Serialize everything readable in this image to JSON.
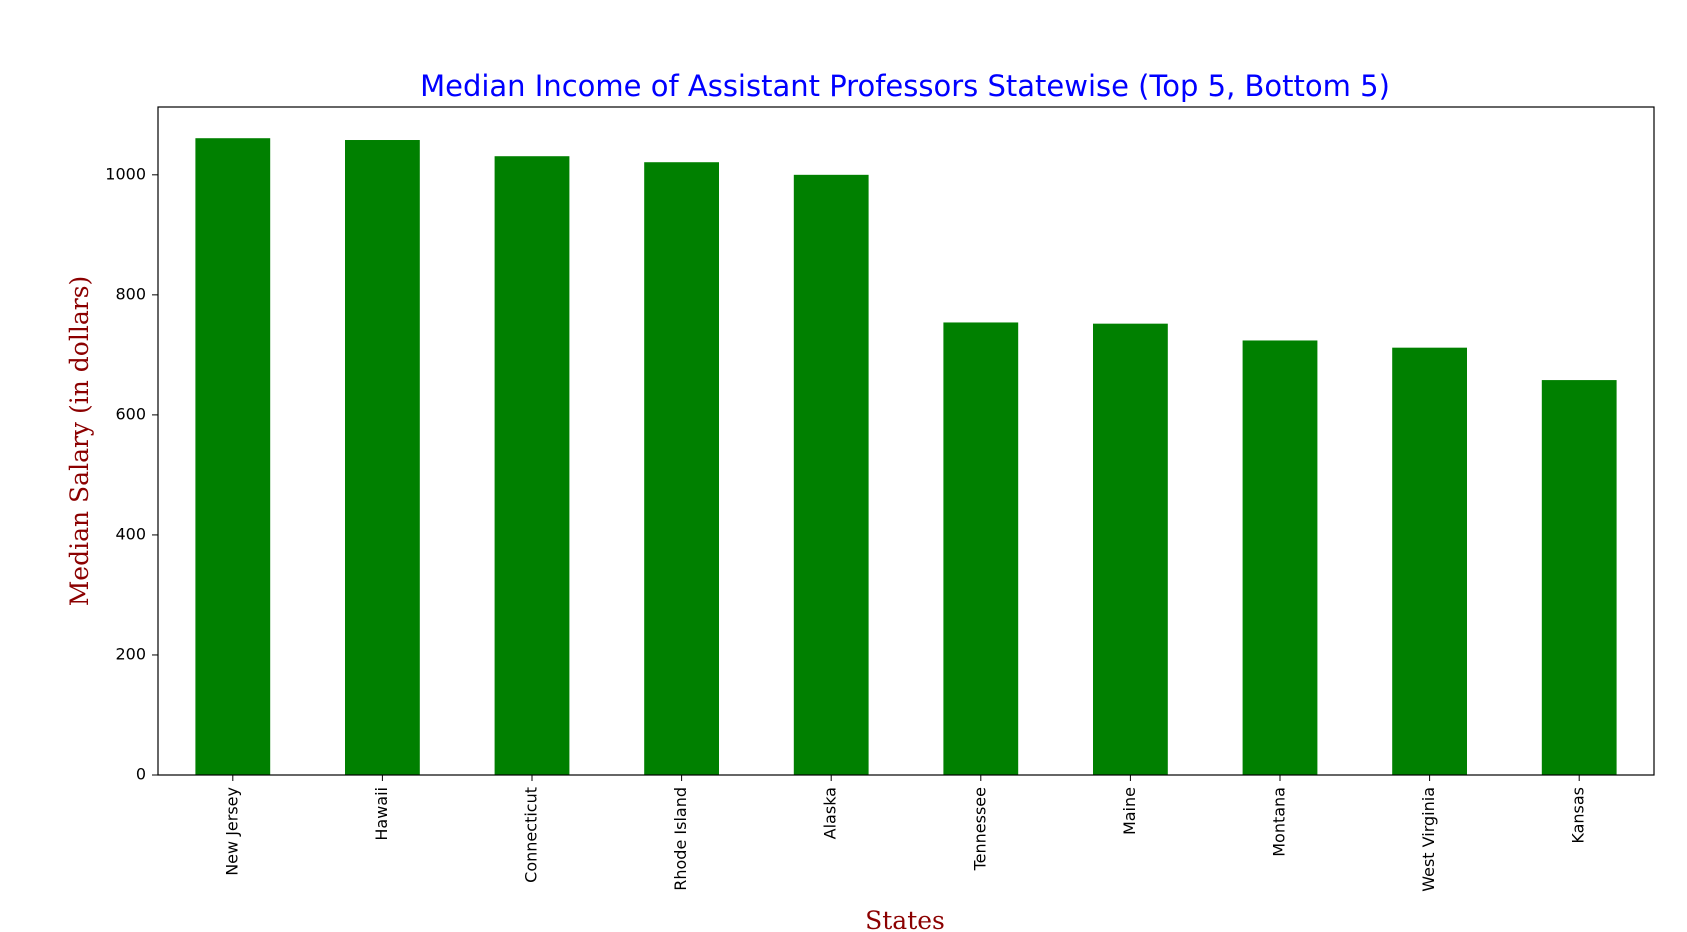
{
  "chart_data": {
    "type": "bar",
    "title": "Median Income of Assistant Professors Statewise (Top 5, Bottom 5)",
    "xlabel": "States",
    "ylabel": "Median Salary (in dollars)",
    "categories": [
      "New Jersey",
      "Hawaii",
      "Connecticut",
      "Rhode Island",
      "Alaska",
      "Tennessee",
      "Maine",
      "Montana",
      "West Virginia",
      "Kansas"
    ],
    "values": [
      1061,
      1058,
      1031,
      1021,
      1000,
      754,
      752,
      724,
      712,
      658
    ],
    "ylim": [
      0,
      1113
    ],
    "yticks": [
      0,
      200,
      400,
      600,
      800,
      1000
    ],
    "grid": false,
    "colors": {
      "bar": "#008000",
      "title": "#0000ff",
      "axis_label": "#8b0000"
    }
  }
}
